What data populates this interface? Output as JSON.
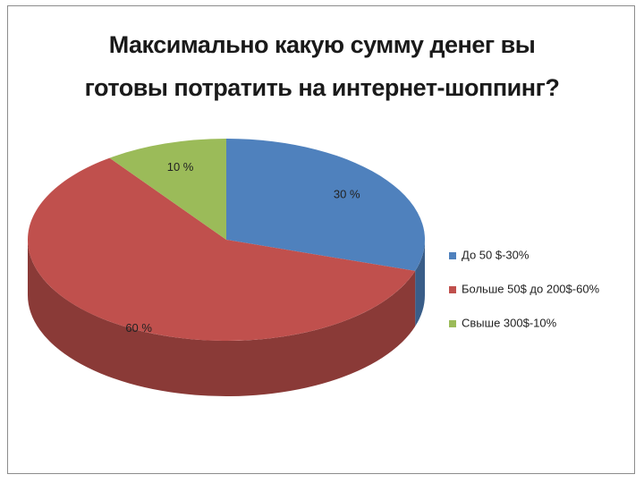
{
  "chart_data": {
    "type": "pie3d",
    "title": "Максимально какую сумму денег вы готовы потратить на интернет-шоппинг?",
    "categories": [
      "До 50 $-30%",
      "Больше 50$ до 200$-60%",
      "Свыше 300$-10%"
    ],
    "values": [
      30,
      60,
      10
    ],
    "value_labels": [
      "30 %",
      "60 %",
      "10 %"
    ],
    "colors": [
      "#4f81bd",
      "#c0504d",
      "#9bbb59"
    ],
    "legend": "right"
  }
}
